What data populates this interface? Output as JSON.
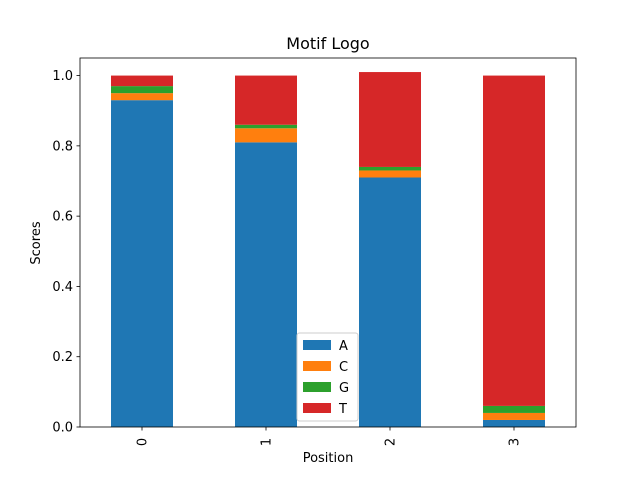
{
  "chart_data": {
    "type": "bar",
    "stacked": true,
    "title": "Motif Logo",
    "xlabel": "Position",
    "ylabel": "Scores",
    "categories": [
      "0",
      "1",
      "2",
      "3"
    ],
    "ylim": [
      0,
      1.05
    ],
    "yticks": [
      0.0,
      0.2,
      0.4,
      0.6,
      0.8,
      1.0
    ],
    "ytick_labels": [
      "0.0",
      "0.2",
      "0.4",
      "0.6",
      "0.8",
      "1.0"
    ],
    "grid": false,
    "legend_position": "bottom-center",
    "series": [
      {
        "name": "A",
        "color": "#1f77b4",
        "values": [
          0.93,
          0.81,
          0.71,
          0.02
        ]
      },
      {
        "name": "C",
        "color": "#ff7f0e",
        "values": [
          0.02,
          0.04,
          0.02,
          0.02
        ]
      },
      {
        "name": "G",
        "color": "#2ca02c",
        "values": [
          0.02,
          0.01,
          0.01,
          0.02
        ]
      },
      {
        "name": "T",
        "color": "#d62728",
        "values": [
          0.03,
          0.14,
          0.27,
          0.94
        ]
      }
    ]
  }
}
